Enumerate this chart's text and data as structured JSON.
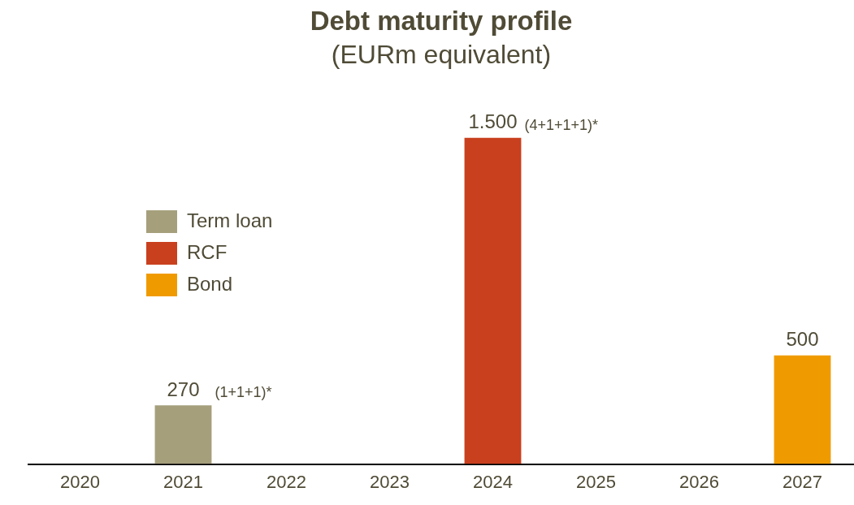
{
  "chart_data": {
    "type": "bar",
    "title": "Debt maturity profile",
    "subtitle": "(EURm equivalent)",
    "categories": [
      "2020",
      "2021",
      "2022",
      "2023",
      "2024",
      "2025",
      "2026",
      "2027"
    ],
    "stacked": true,
    "series": [
      {
        "name": "Term loan",
        "color": "#a59f7c",
        "values": [
          null,
          270,
          null,
          null,
          null,
          null,
          null,
          null
        ],
        "value_labels": [
          null,
          "270",
          null,
          null,
          null,
          null,
          null,
          null
        ]
      },
      {
        "name": "RCF",
        "color": "#c9401f",
        "values": [
          null,
          null,
          null,
          null,
          1500,
          null,
          null,
          null
        ],
        "value_labels": [
          null,
          null,
          null,
          null,
          "1.500",
          null,
          null,
          null
        ]
      },
      {
        "name": "Bond",
        "color": "#ef9b00",
        "values": [
          null,
          null,
          null,
          null,
          null,
          null,
          null,
          500
        ],
        "value_labels": [
          null,
          null,
          null,
          null,
          null,
          null,
          null,
          "500"
        ]
      }
    ],
    "annotations": [
      {
        "text": "(1+1+1)*",
        "x": "2021",
        "y": 270
      },
      {
        "text": "(4+1+1+1)*",
        "x": "2024",
        "y": 1500
      }
    ],
    "legend": "left",
    "grid": false
  }
}
